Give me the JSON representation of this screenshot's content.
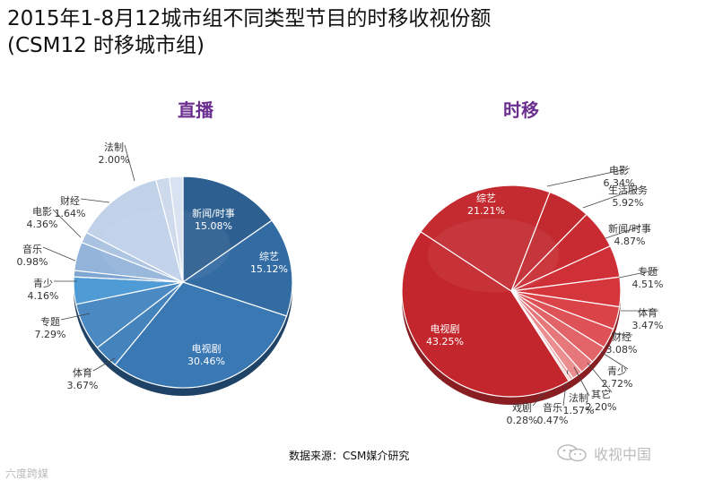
{
  "page": {
    "title_line1": "2015年1-8月12城市组不同类型节目的时移收视份额",
    "title_line2": "(CSM12 时移城市组)",
    "source": "数据来源：CSM媒介研究",
    "watermark_left": "六度跨媒",
    "watermark_right": "收视中国"
  },
  "chart_data": [
    {
      "type": "pie",
      "title": "直播",
      "title_color": "#6b2f8f",
      "slices": [
        {
          "label": "新闻/时事",
          "value": 15.08,
          "display": "15.08%",
          "color": "#2d5f91"
        },
        {
          "label": "综艺",
          "value": 15.12,
          "display": "15.12%",
          "color": "#336ba3"
        },
        {
          "label": "电视剧",
          "value": 30.46,
          "display": "30.46%",
          "color": "#3a78b4"
        },
        {
          "label": "体育",
          "value": 3.67,
          "display": "3.67%",
          "color": "#4583bd"
        },
        {
          "label": "专题",
          "value": 7.29,
          "display": "7.29%",
          "color": "#4b89c3"
        },
        {
          "label": "青少",
          "value": 4.16,
          "display": "4.16%",
          "color": "#4f9bd6"
        },
        {
          "label": "音乐",
          "value": 0.98,
          "display": "0.98%",
          "color": "#7fa6d2"
        },
        {
          "label": "电影",
          "value": 4.36,
          "display": "4.36%",
          "color": "#93b4da"
        },
        {
          "label": "财经",
          "value": 1.64,
          "display": "1.64%",
          "color": "#a9c2e1"
        },
        {
          "label": "",
          "value": 13.24,
          "display": "",
          "color": "#c0d1e8"
        },
        {
          "label": "",
          "value": 1.99,
          "display": "",
          "color": "#cdd9ec"
        },
        {
          "label": "法制",
          "value": 2.0,
          "display": "2.00%",
          "color": "#d9e2f0"
        }
      ]
    },
    {
      "type": "pie",
      "title": "时移",
      "title_color": "#6b2f8f",
      "slices": [
        {
          "label": "电影",
          "value": 6.34,
          "display": "6.34%",
          "color": "#c22a30"
        },
        {
          "label": "生活服务",
          "value": 5.92,
          "display": "5.92%",
          "color": "#c82c32"
        },
        {
          "label": "新闻/时事",
          "value": 4.87,
          "display": "4.87%",
          "color": "#cf3037"
        },
        {
          "label": "专题",
          "value": 4.51,
          "display": "4.51%",
          "color": "#d5363c"
        },
        {
          "label": "体育",
          "value": 3.47,
          "display": "3.47%",
          "color": "#da4449"
        },
        {
          "label": "财经",
          "value": 3.08,
          "display": "3.08%",
          "color": "#de5257"
        },
        {
          "label": "青少",
          "value": 2.72,
          "display": "2.72%",
          "color": "#e26468"
        },
        {
          "label": "其它",
          "value": 2.2,
          "display": "2.20%",
          "color": "#e6787b"
        },
        {
          "label": "法制",
          "value": 1.57,
          "display": "1.57%",
          "color": "#ea8e90"
        },
        {
          "label": "音乐",
          "value": 0.47,
          "display": "0.47%",
          "color": "#eea5a6"
        },
        {
          "label": "戏剧",
          "value": 0.28,
          "display": "0.28%",
          "color": "#f2bcbc"
        },
        {
          "label": "电视剧",
          "value": 43.25,
          "display": "43.25%",
          "color": "#c4262d"
        },
        {
          "label": "综艺",
          "value": 21.21,
          "display": "21.21%",
          "color": "#c32b31"
        }
      ]
    }
  ]
}
